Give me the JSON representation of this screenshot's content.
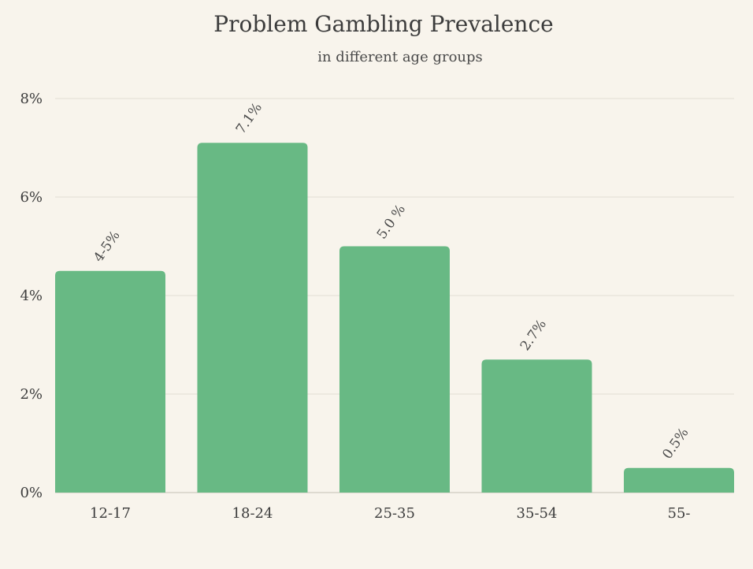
{
  "chart_data": {
    "type": "bar",
    "title": "Problem Gambling Prevalence",
    "subtitle": "in different age groups",
    "categories": [
      "12-17",
      "18-24",
      "25-35",
      "35-54",
      "55-"
    ],
    "values": [
      4.5,
      7.1,
      5.0,
      2.7,
      0.5
    ],
    "data_labels": [
      "4-5%",
      "7.1%",
      "5.0 %",
      "2.7%",
      "0.5%"
    ],
    "y_ticks": [
      0,
      2,
      4,
      6,
      8
    ],
    "y_tick_labels": [
      "0%",
      "2%",
      "4%",
      "6%",
      "8%"
    ],
    "ylim": [
      0,
      8
    ],
    "xlabel": "",
    "ylabel": "",
    "grid": true,
    "legend": "none",
    "colors": {
      "bar": "#68b984",
      "background": "#f8f4ec",
      "text": "#3c3c3c",
      "grid": "#e2ded4"
    }
  }
}
